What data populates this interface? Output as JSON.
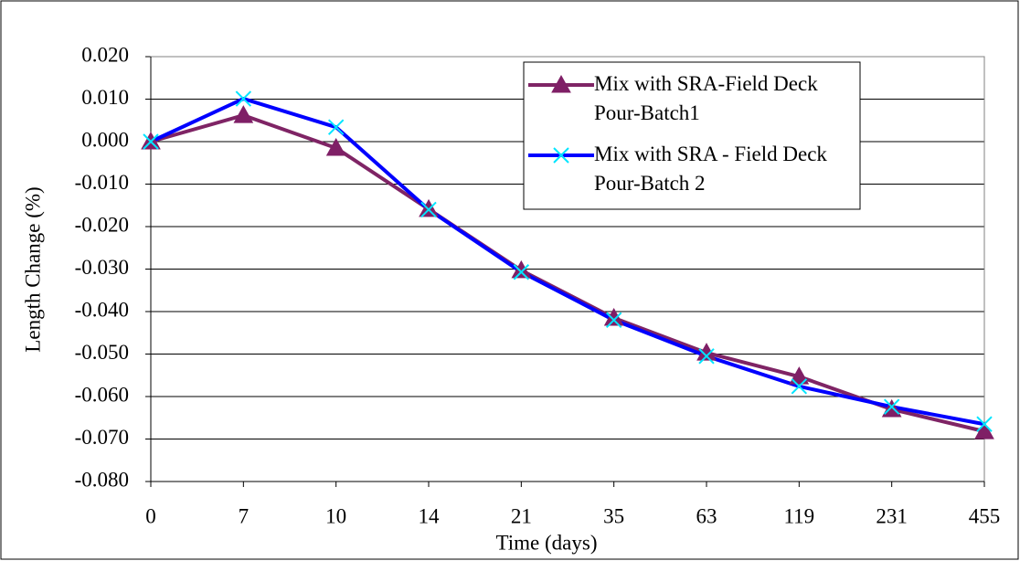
{
  "chart_data": {
    "type": "line",
    "x_label": "Time (days)",
    "y_label": "Length Change (%)",
    "categories": [
      "0",
      "7",
      "10",
      "14",
      "21",
      "35",
      "63",
      "119",
      "231",
      "455"
    ],
    "series": [
      {
        "name": "Mix with SRA-Field Deck Pour-Batch1",
        "color": "#7f2465",
        "marker": "triangle",
        "marker_color": "#7f1f66",
        "values": [
          0.0,
          0.0062,
          -0.0015,
          -0.0159,
          -0.0303,
          -0.0415,
          -0.0497,
          -0.0553,
          -0.063,
          -0.0682
        ]
      },
      {
        "name": "Mix with SRA - Field Deck Pour-Batch 2",
        "color": "#0000ff",
        "marker": "cross",
        "marker_color": "#00e5ff",
        "values": [
          0.0,
          0.0101,
          0.0034,
          -0.016,
          -0.0307,
          -0.042,
          -0.0505,
          -0.0576,
          -0.0624,
          -0.0665
        ]
      }
    ],
    "ylim": [
      -0.08,
      0.02
    ],
    "yticks": [
      {
        "value": 0.02,
        "label": "0.020"
      },
      {
        "value": 0.01,
        "label": "0.010"
      },
      {
        "value": 0,
        "label": "0.000"
      },
      {
        "value": -0.01,
        "label": "-0.010"
      },
      {
        "value": -0.02,
        "label": "-0.020"
      },
      {
        "value": -0.03,
        "label": "-0.030"
      },
      {
        "value": -0.04,
        "label": "-0.040"
      },
      {
        "value": -0.05,
        "label": "-0.050"
      },
      {
        "value": -0.06,
        "label": "-0.060"
      },
      {
        "value": -0.07,
        "label": "-0.070"
      },
      {
        "value": -0.08,
        "label": "-0.080"
      }
    ],
    "grid": true
  }
}
